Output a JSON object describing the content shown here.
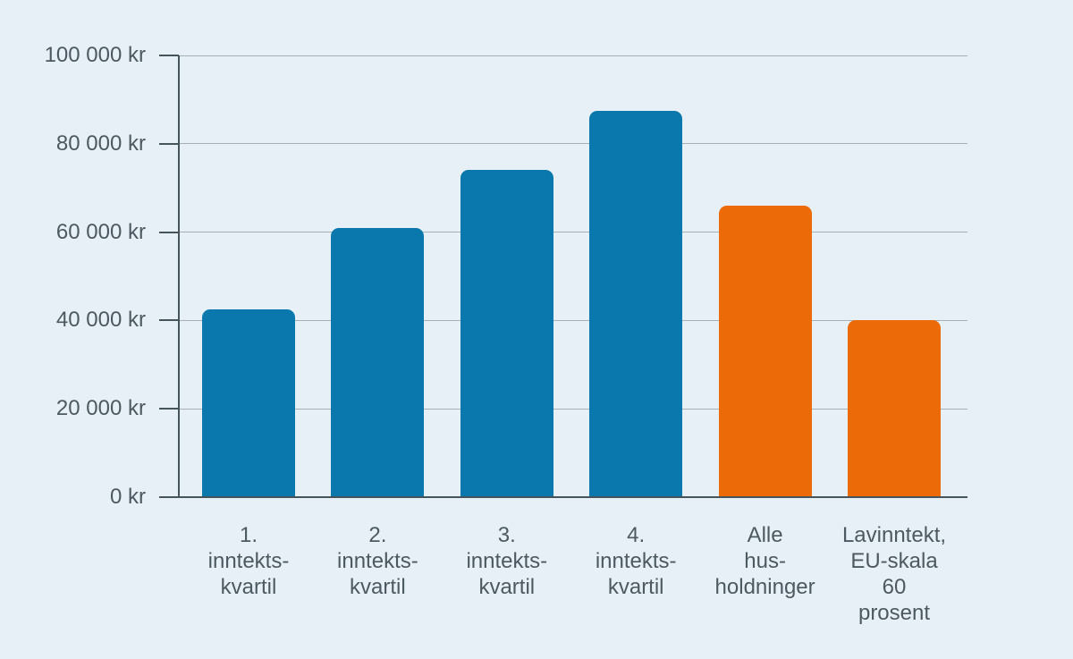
{
  "chart_data": {
    "type": "bar",
    "title": "",
    "xlabel": "",
    "ylabel": "",
    "unit": "kr",
    "ylim": [
      0,
      100000
    ],
    "ytick_interval": 20000,
    "ytick_labels": [
      "0 kr",
      "20 000 kr",
      "40 000 kr",
      "60 000 kr",
      "80 000 kr",
      "100 000 kr"
    ],
    "categories": [
      "1. inntektskvartil",
      "2. inntektskvartil",
      "3. inntektskvartil",
      "4. inntektskvartil",
      "Alle husholdninger",
      "Lavinntekt, EU-skala 60 prosent"
    ],
    "category_label_lines": [
      [
        "1.",
        "inntekts-",
        "kvartil"
      ],
      [
        "2.",
        "inntekts-",
        "kvartil"
      ],
      [
        "3.",
        "inntekts-",
        "kvartil"
      ],
      [
        "4.",
        "inntekts-",
        "kvartil"
      ],
      [
        "Alle",
        "hus-",
        "holdninger"
      ],
      [
        "Lavinntekt,",
        "EU-skala",
        "60",
        "prosent"
      ]
    ],
    "values": [
      42500,
      61000,
      74000,
      87500,
      66000,
      40000
    ],
    "bar_colors": [
      "#0a78ac",
      "#0a78ac",
      "#0a78ac",
      "#0a78ac",
      "#ec6a08",
      "#ec6a08"
    ],
    "legend": null,
    "grid": true
  },
  "style": {
    "background": "#e7f0f6",
    "bar_blue": "#0a78ac",
    "bar_orange": "#ec6a08",
    "gridline_color": "#a3b0b8",
    "axis_color": "#46545c",
    "text_color": "#4d5960"
  }
}
